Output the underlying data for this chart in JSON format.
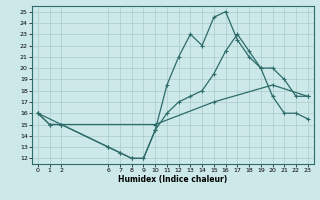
{
  "xlabel": "Humidex (Indice chaleur)",
  "bg_color": "#cce8e8",
  "grid_color": "#aacccc",
  "line_color": "#2e6b6b",
  "xlim": [
    -0.5,
    23.5
  ],
  "ylim": [
    11.5,
    25.5
  ],
  "xticks": [
    0,
    1,
    2,
    6,
    7,
    8,
    9,
    10,
    11,
    12,
    13,
    14,
    15,
    16,
    17,
    18,
    19,
    20,
    21,
    22,
    23
  ],
  "yticks": [
    12,
    13,
    14,
    15,
    16,
    17,
    18,
    19,
    20,
    21,
    22,
    23,
    24,
    25
  ],
  "curve1_x": [
    0,
    1,
    2,
    6,
    7,
    8,
    9,
    10,
    11,
    12,
    13,
    14,
    15,
    16,
    17,
    18,
    19,
    20,
    21,
    22,
    23
  ],
  "curve1_y": [
    16,
    15,
    15,
    13,
    12.5,
    12,
    12,
    14.5,
    18.5,
    21,
    23,
    22,
    24.5,
    25,
    22.5,
    21,
    20,
    20,
    19,
    17.5,
    17.5
  ],
  "curve2_x": [
    0,
    1,
    2,
    6,
    7,
    8,
    9,
    10,
    11,
    12,
    13,
    14,
    15,
    16,
    17,
    18,
    19,
    20,
    21,
    22,
    23
  ],
  "curve2_y": [
    16,
    15,
    15,
    13,
    12.5,
    12,
    12,
    14.5,
    16,
    17,
    17.5,
    18,
    19.5,
    21.5,
    23,
    21.5,
    20,
    17.5,
    16,
    16,
    15.5
  ],
  "curve3_x": [
    0,
    2,
    10,
    15,
    20,
    23
  ],
  "curve3_y": [
    16,
    15,
    15,
    17,
    18.5,
    17.5
  ]
}
